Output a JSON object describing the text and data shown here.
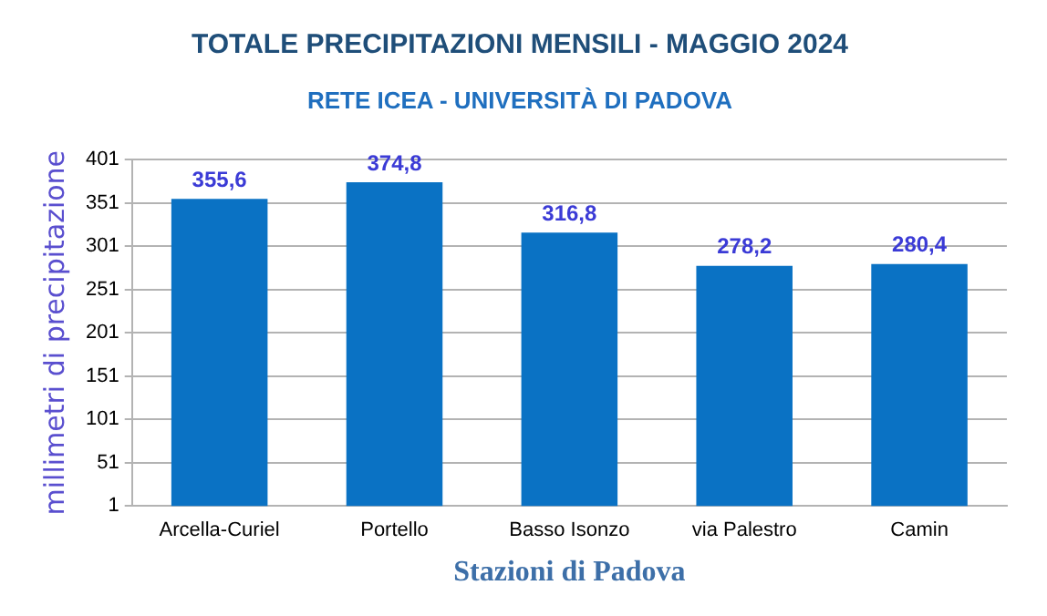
{
  "chart_data": {
    "type": "bar",
    "title": "TOTALE PRECIPITAZIONI MENSILI - MAGGIO 2024",
    "subtitle": "RETE ICEA - UNIVERSITÀ DI PADOVA",
    "xlabel": "Stazioni di Padova",
    "ylabel": "millimetri di precipitazione",
    "categories": [
      "Arcella-Curiel",
      "Portello",
      "Basso Isonzo",
      "via Palestro",
      "Camin"
    ],
    "values": [
      355.6,
      374.8,
      316.8,
      278.2,
      280.4
    ],
    "value_labels": [
      "355,6",
      "374,8",
      "316,8",
      "278,2",
      "280,4"
    ],
    "color": "#0a72c4",
    "ylim": [
      1,
      401
    ],
    "yticks": [
      1,
      51,
      101,
      151,
      201,
      251,
      301,
      351,
      401
    ],
    "grid": "y",
    "legend": false
  }
}
